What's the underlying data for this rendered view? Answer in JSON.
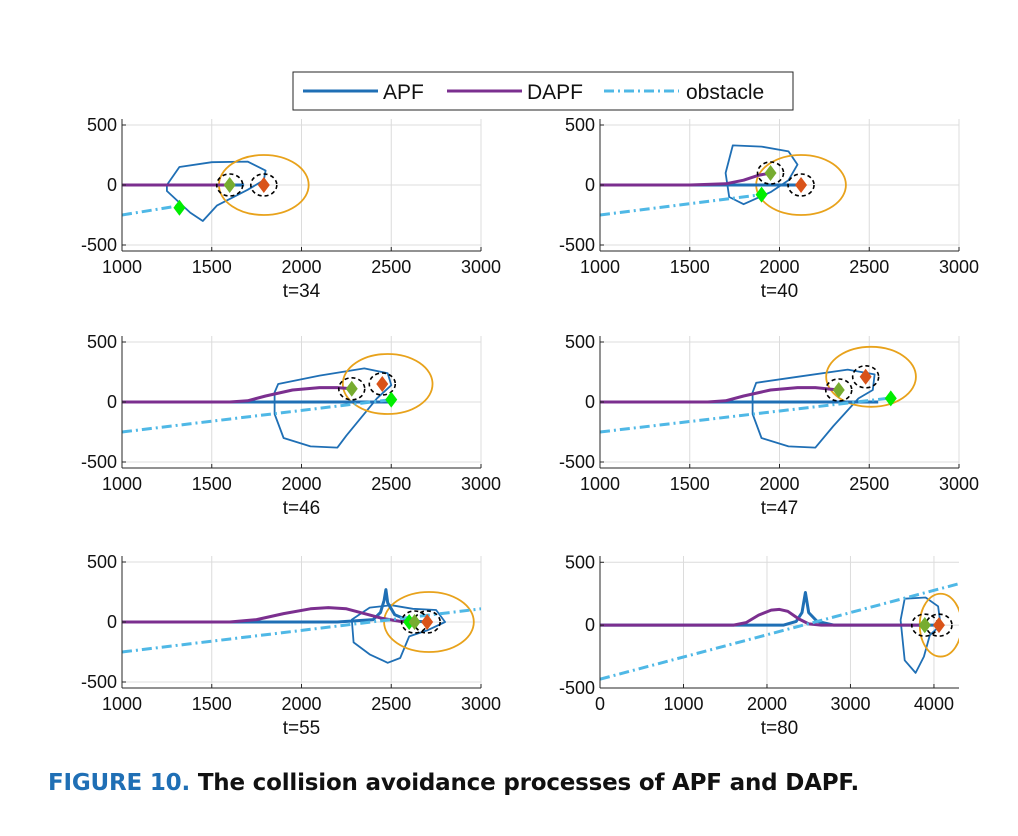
{
  "legend": {
    "placement": "top-center",
    "entries": [
      {
        "label": "APF",
        "color": "#1f6fb5",
        "style": "solid"
      },
      {
        "label": "DAPF",
        "color": "#7b2f8f",
        "style": "solid"
      },
      {
        "label": "obstacle",
        "color": "#4fb8e6",
        "style": "dash-dot"
      }
    ]
  },
  "caption": {
    "number": "FIGURE 10.",
    "text": "The collision avoidance processes of APF and DAPF."
  },
  "colors": {
    "apf": "#1f6fb5",
    "dapf": "#7b2f8f",
    "obstacle": "#4fb8e6",
    "safety_circle": "#e8a21b",
    "ship_marker": "#d95319",
    "dapf_marker": "#77ac30",
    "obstacle_marker": "#00ee00",
    "ship_zone_ring": "#000000",
    "grid": "#dcdcdc",
    "axis": "#262626"
  },
  "chart_data": [
    {
      "type": "line",
      "title": "t=34",
      "xlim": [
        1000,
        3000
      ],
      "ylim": [
        -550,
        550
      ],
      "xticks": [
        1000,
        1500,
        2000,
        2500,
        3000
      ],
      "yticks": [
        -500,
        0,
        500
      ],
      "grid": true,
      "series": [
        {
          "name": "APF",
          "x": [
            1000,
            1300,
            1600,
            1680
          ],
          "y": [
            0,
            0,
            0,
            0
          ]
        },
        {
          "name": "DAPF",
          "x": [
            1000,
            1300,
            1600
          ],
          "y": [
            0,
            0,
            0
          ]
        },
        {
          "name": "obstacle",
          "x": [
            1000,
            1330
          ],
          "y": [
            -250,
            -170
          ]
        }
      ],
      "apf_region": [
        [
          1250,
          0
        ],
        [
          1320,
          150
        ],
        [
          1500,
          190
        ],
        [
          1700,
          195
        ],
        [
          1800,
          120
        ],
        [
          1790,
          40
        ],
        [
          1700,
          -40
        ],
        [
          1530,
          -170
        ],
        [
          1450,
          -300
        ],
        [
          1380,
          -230
        ],
        [
          1250,
          -50
        ],
        [
          1250,
          0
        ]
      ],
      "safety_circle": {
        "cx": 1790,
        "cy": 0,
        "rx": 250,
        "ry": 250
      },
      "markers": {
        "ship": [
          1790,
          0
        ],
        "dapf": [
          1600,
          0
        ],
        "obstacle": [
          1320,
          -190
        ]
      }
    },
    {
      "type": "line",
      "title": "t=40",
      "xlim": [
        1000,
        3000
      ],
      "ylim": [
        -550,
        550
      ],
      "xticks": [
        1000,
        1500,
        2000,
        2500,
        3000
      ],
      "yticks": [
        -500,
        0,
        500
      ],
      "grid": true,
      "series": [
        {
          "name": "APF",
          "x": [
            1000,
            1400,
            1800,
            2000,
            2120
          ],
          "y": [
            0,
            0,
            0,
            0,
            0
          ]
        },
        {
          "name": "DAPF",
          "x": [
            1000,
            1500,
            1700,
            1800,
            1880,
            1950
          ],
          "y": [
            0,
            0,
            10,
            40,
            80,
            100
          ]
        },
        {
          "name": "obstacle",
          "x": [
            1000,
            1900
          ],
          "y": [
            -250,
            -80
          ]
        }
      ],
      "apf_region": [
        [
          1700,
          100
        ],
        [
          1740,
          330
        ],
        [
          1900,
          320
        ],
        [
          2050,
          280
        ],
        [
          2100,
          170
        ],
        [
          2050,
          40
        ],
        [
          1950,
          -60
        ],
        [
          1800,
          -160
        ],
        [
          1720,
          -100
        ],
        [
          1700,
          100
        ]
      ],
      "safety_circle": {
        "cx": 2120,
        "cy": 0,
        "rx": 250,
        "ry": 250
      },
      "markers": {
        "ship": [
          2120,
          0
        ],
        "dapf": [
          1950,
          100
        ],
        "obstacle": [
          1900,
          -80
        ]
      }
    },
    {
      "type": "line",
      "title": "t=46",
      "xlim": [
        1000,
        3000
      ],
      "ylim": [
        -550,
        550
      ],
      "xticks": [
        1000,
        1500,
        2000,
        2500,
        3000
      ],
      "yticks": [
        -500,
        0,
        500
      ],
      "grid": true,
      "series": [
        {
          "name": "APF",
          "x": [
            1000,
            1400,
            1800,
            2200,
            2500
          ],
          "y": [
            0,
            0,
            0,
            0,
            0
          ]
        },
        {
          "name": "DAPF",
          "x": [
            1000,
            1600,
            1700,
            1800,
            1950,
            2100,
            2200,
            2280
          ],
          "y": [
            0,
            0,
            10,
            50,
            100,
            120,
            120,
            110
          ]
        },
        {
          "name": "obstacle",
          "x": [
            1000,
            2500
          ],
          "y": [
            -250,
            20
          ]
        }
      ],
      "apf_region": [
        [
          1850,
          80
        ],
        [
          1870,
          150
        ],
        [
          2100,
          220
        ],
        [
          2350,
          280
        ],
        [
          2480,
          240
        ],
        [
          2500,
          140
        ],
        [
          2420,
          30
        ],
        [
          2250,
          -280
        ],
        [
          2200,
          -380
        ],
        [
          2050,
          -370
        ],
        [
          1900,
          -300
        ],
        [
          1850,
          -100
        ],
        [
          1850,
          80
        ]
      ],
      "safety_circle": {
        "cx": 2480,
        "cy": 150,
        "rx": 250,
        "ry": 250
      },
      "markers": {
        "ship": [
          2450,
          150
        ],
        "dapf": [
          2280,
          110
        ],
        "obstacle": [
          2500,
          20
        ]
      }
    },
    {
      "type": "line",
      "title": "t=47",
      "xlim": [
        1000,
        3000
      ],
      "ylim": [
        -550,
        550
      ],
      "xticks": [
        1000,
        1500,
        2000,
        2500,
        3000
      ],
      "yticks": [
        -500,
        0,
        500
      ],
      "grid": true,
      "series": [
        {
          "name": "APF",
          "x": [
            1000,
            1400,
            1800,
            2200,
            2550
          ],
          "y": [
            0,
            0,
            0,
            0,
            0
          ]
        },
        {
          "name": "DAPF",
          "x": [
            1000,
            1600,
            1700,
            1800,
            1950,
            2100,
            2200,
            2330
          ],
          "y": [
            0,
            0,
            10,
            50,
            100,
            120,
            120,
            100
          ]
        },
        {
          "name": "obstacle",
          "x": [
            1000,
            2600
          ],
          "y": [
            -250,
            30
          ]
        }
      ],
      "apf_region": [
        [
          1850,
          80
        ],
        [
          1870,
          160
        ],
        [
          2100,
          210
        ],
        [
          2380,
          270
        ],
        [
          2530,
          230
        ],
        [
          2520,
          100
        ],
        [
          2440,
          30
        ],
        [
          2300,
          -200
        ],
        [
          2200,
          -380
        ],
        [
          2050,
          -370
        ],
        [
          1900,
          -300
        ],
        [
          1850,
          -100
        ],
        [
          1850,
          80
        ]
      ],
      "safety_circle": {
        "cx": 2510,
        "cy": 210,
        "rx": 250,
        "ry": 250
      },
      "markers": {
        "ship": [
          2480,
          210
        ],
        "dapf": [
          2330,
          100
        ],
        "obstacle": [
          2620,
          30
        ]
      }
    },
    {
      "type": "line",
      "title": "t=55",
      "xlim": [
        1000,
        3000
      ],
      "ylim": [
        -550,
        550
      ],
      "xticks": [
        1000,
        1500,
        2000,
        2500,
        3000
      ],
      "yticks": [
        -500,
        0,
        500
      ],
      "grid": true,
      "series": [
        {
          "name": "APF",
          "x": [
            1000,
            1800,
            2200,
            2400,
            2440,
            2460,
            2470,
            2480,
            2520,
            2600,
            2700
          ],
          "y": [
            0,
            0,
            0,
            20,
            80,
            180,
            270,
            160,
            60,
            10,
            0
          ]
        },
        {
          "name": "DAPF",
          "x": [
            1000,
            1600,
            1750,
            1900,
            2050,
            2150,
            2250,
            2350,
            2450,
            2550,
            2630
          ],
          "y": [
            0,
            0,
            20,
            70,
            110,
            120,
            110,
            70,
            30,
            5,
            0
          ]
        },
        {
          "name": "obstacle",
          "x": [
            1000,
            3000
          ],
          "y": [
            -250,
            110
          ]
        }
      ],
      "apf_region": [
        [
          2280,
          20
        ],
        [
          2380,
          120
        ],
        [
          2500,
          140
        ],
        [
          2620,
          110
        ],
        [
          2750,
          100
        ],
        [
          2800,
          0
        ],
        [
          2700,
          -70
        ],
        [
          2600,
          -120
        ],
        [
          2550,
          -300
        ],
        [
          2480,
          -340
        ],
        [
          2380,
          -270
        ],
        [
          2290,
          -170
        ],
        [
          2280,
          20
        ]
      ],
      "safety_circle": {
        "cx": 2710,
        "cy": 0,
        "rx": 250,
        "ry": 250
      },
      "markers": {
        "ship": [
          2700,
          0
        ],
        "dapf": [
          2630,
          0
        ],
        "obstacle": [
          2600,
          0
        ]
      }
    },
    {
      "type": "line",
      "title": "t=80",
      "xlim": [
        0,
        4300
      ],
      "ylim": [
        -500,
        550
      ],
      "xticks": [
        0,
        1000,
        2000,
        3000,
        4000
      ],
      "yticks": [
        -500,
        0,
        500
      ],
      "grid": true,
      "series": [
        {
          "name": "APF",
          "x": [
            0,
            1800,
            2200,
            2350,
            2420,
            2460,
            2500,
            2600,
            2800,
            3300,
            4050
          ],
          "y": [
            0,
            0,
            0,
            30,
            100,
            260,
            100,
            30,
            0,
            0,
            0
          ]
        },
        {
          "name": "DAPF",
          "x": [
            0,
            1600,
            1750,
            1900,
            2050,
            2150,
            2250,
            2380,
            2500,
            2650,
            3300,
            3890
          ],
          "y": [
            0,
            0,
            20,
            80,
            120,
            125,
            110,
            50,
            10,
            0,
            0,
            0
          ]
        },
        {
          "name": "obstacle",
          "x": [
            0,
            4300
          ],
          "y": [
            -430,
            330
          ]
        }
      ],
      "apf_region": [
        [
          3600,
          40
        ],
        [
          3650,
          210
        ],
        [
          3900,
          220
        ],
        [
          4050,
          150
        ],
        [
          4080,
          0
        ],
        [
          3950,
          -80
        ],
        [
          3880,
          -250
        ],
        [
          3780,
          -380
        ],
        [
          3650,
          -280
        ],
        [
          3600,
          40
        ]
      ],
      "safety_circle": {
        "cx": 4080,
        "cy": 0,
        "rx": 250,
        "ry": 250
      },
      "markers": {
        "ship": [
          4060,
          0
        ],
        "dapf": [
          3890,
          0
        ],
        "obstacle": [
          3890,
          0
        ]
      }
    }
  ]
}
